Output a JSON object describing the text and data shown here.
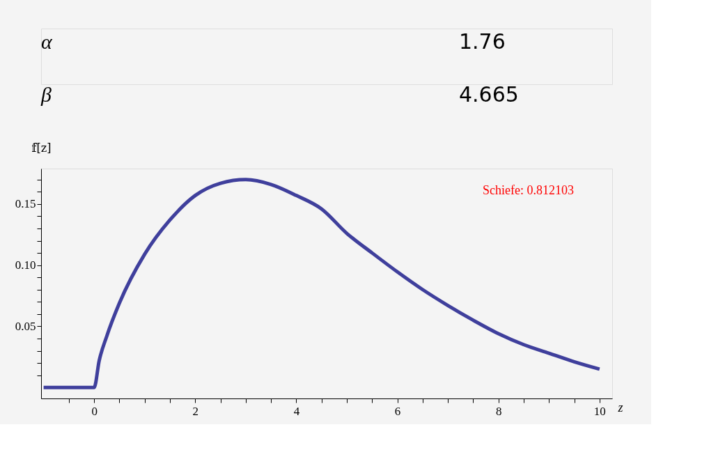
{
  "chart_data": {
    "type": "line",
    "ylabel": "𝕗[z]",
    "xlabel": "z",
    "annotations": [
      "Schiefe:    0.812103",
      "α",
      "1.76",
      "β",
      "4.665"
    ],
    "series": [
      {
        "color": "#3f3f9c",
        "x": [
          -1,
          0,
          0,
          0.1,
          0.25,
          0.5,
          1,
          1.5,
          2,
          2.5,
          3,
          3.5,
          4,
          4.5,
          5,
          5.5,
          6,
          6.5,
          7,
          7.5,
          8,
          8.5,
          9,
          9.5,
          10
        ],
        "values": [
          0,
          0,
          0,
          0.022,
          0.042,
          0.069,
          0.109,
          0.137,
          0.157,
          0.167,
          0.17,
          0.166,
          0.157,
          0.146,
          0.126,
          0.11,
          0.0945,
          0.08,
          0.067,
          0.055,
          0.044,
          0.035,
          0.028,
          0.021,
          0.015
        ]
      }
    ],
    "xlim": [
      -1.05,
      10.25
    ],
    "ylim": [
      -0.009,
      0.179
    ],
    "xticks": [
      {
        "value": -0.5,
        "label": null
      },
      0,
      {
        "value": 0.5,
        "label": null
      },
      {
        "value": 1,
        "label": null
      },
      {
        "value": 1.5,
        "label": null
      },
      2,
      {
        "value": 2.5,
        "label": null
      },
      {
        "value": 3,
        "label": null
      },
      {
        "value": 3.5,
        "label": null
      },
      4,
      {
        "value": 4.5,
        "label": null
      },
      {
        "value": 5,
        "label": null
      },
      {
        "value": 5.5,
        "label": null
      },
      6,
      {
        "value": 6.5,
        "label": null
      },
      {
        "value": 7,
        "label": null
      },
      {
        "value": 7.5,
        "label": null
      },
      8,
      {
        "value": 8.5,
        "label": null
      },
      {
        "value": 9,
        "label": null
      },
      {
        "value": 9.5,
        "label": null
      },
      10
    ],
    "yticks": [
      {
        "value": 0.01,
        "label": null
      },
      {
        "value": 0.02,
        "label": null
      },
      {
        "value": 0.03,
        "label": null
      },
      {
        "value": 0.04,
        "label": null
      },
      {
        "value": 0.05,
        "label": "0.05"
      },
      {
        "value": 0.06,
        "label": null
      },
      {
        "value": 0.07,
        "label": null
      },
      {
        "value": 0.08,
        "label": null
      },
      {
        "value": 0.09,
        "label": null
      },
      {
        "value": 0.1,
        "label": "0.10"
      },
      {
        "value": 0.11,
        "label": null
      },
      {
        "value": 0.12,
        "label": null
      },
      {
        "value": 0.13,
        "label": null
      },
      {
        "value": 0.14,
        "label": null
      },
      {
        "value": 0.15,
        "label": "0.15"
      },
      {
        "value": 0.16,
        "label": null
      },
      {
        "value": 0.17,
        "label": null
      }
    ],
    "grid": false,
    "marker": "none",
    "line_style": "solid"
  }
}
